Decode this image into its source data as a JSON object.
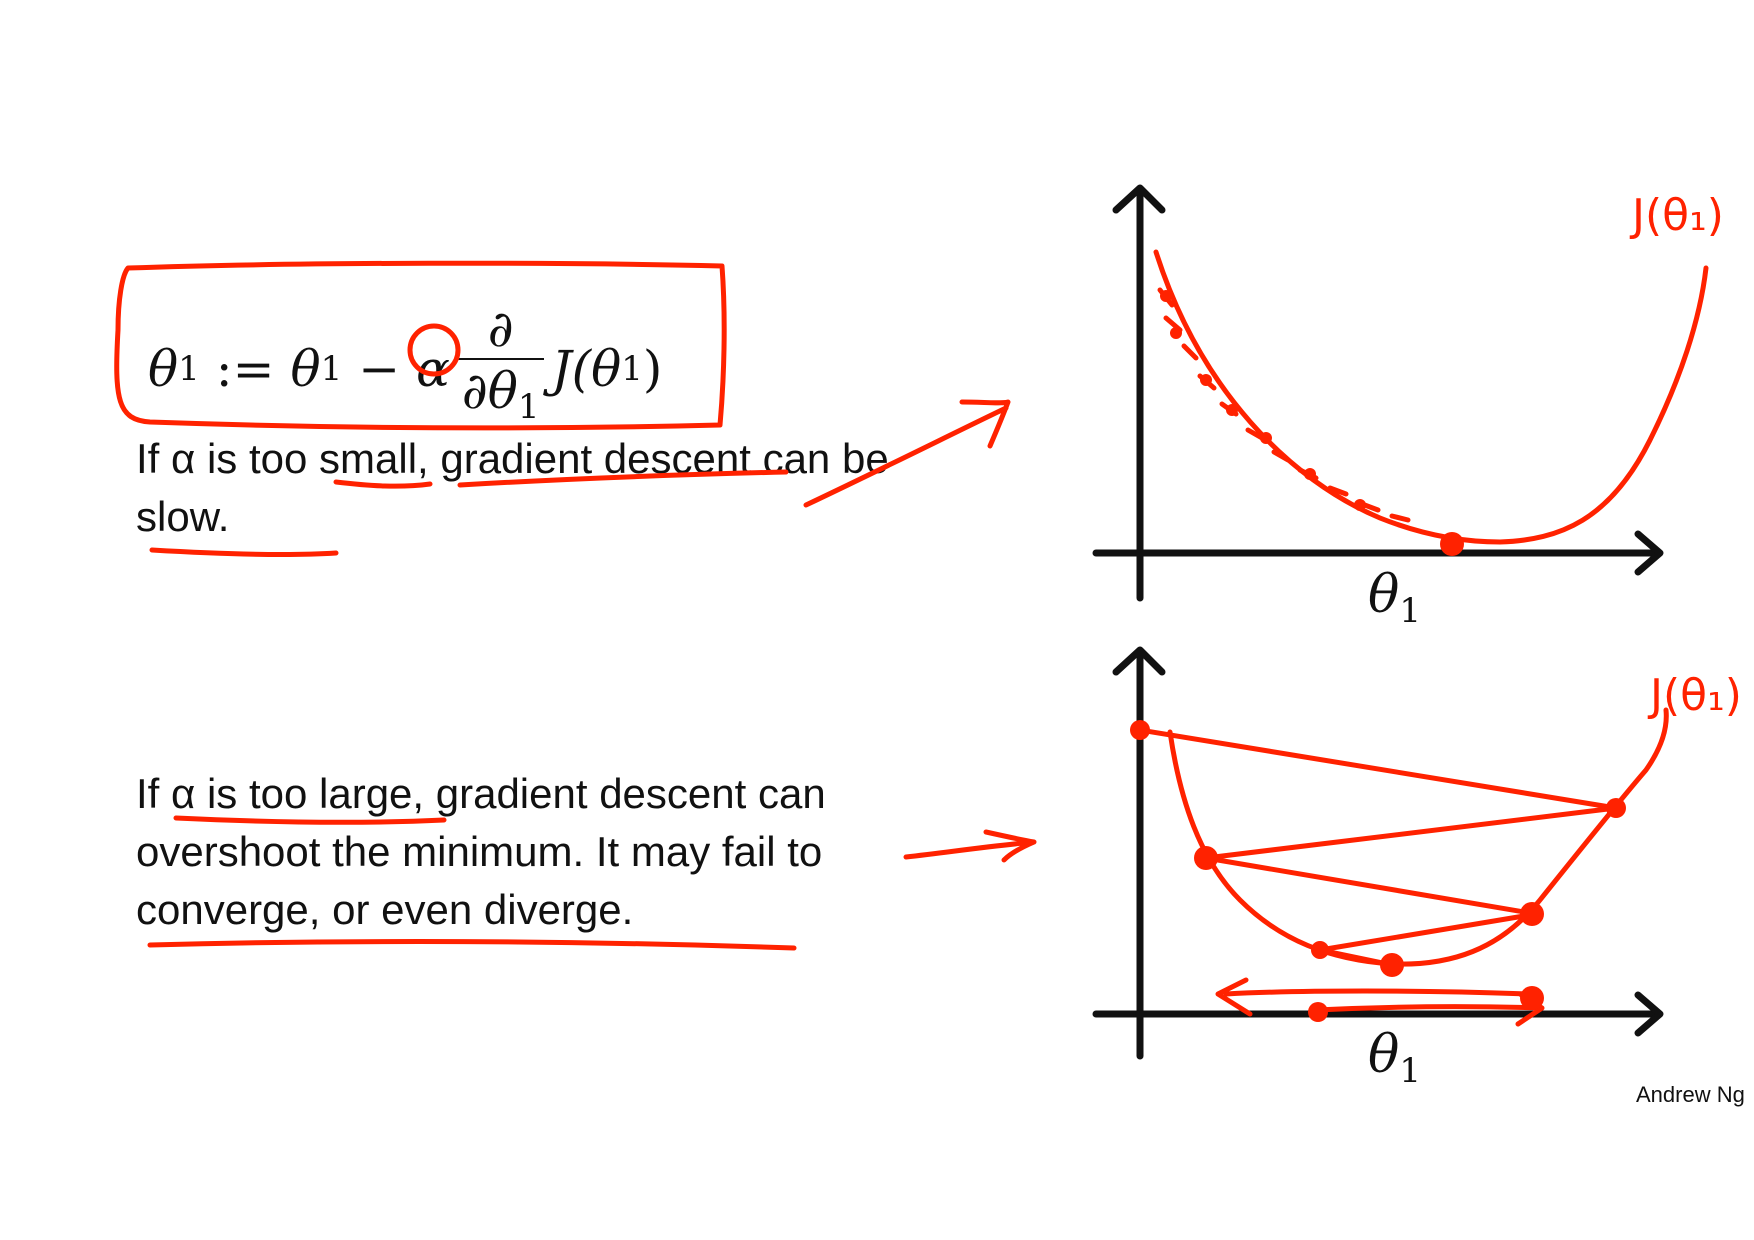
{
  "formula": {
    "lhs_var": "θ",
    "lhs_sub": "1",
    "assign": ":=",
    "rhs_var": "θ",
    "rhs_sub": "1",
    "minus": "−",
    "alpha": "α",
    "frac_num": "∂",
    "frac_den_var": "∂θ",
    "frac_den_sub": "1",
    "func": "J(θ",
    "func_sub": "1",
    "func_close": ")"
  },
  "paragraphs": {
    "small": "If α is too small, gradient descent can be slow.",
    "large": "If α is too large, gradient descent can overshoot the minimum. It may fail to converge, or even diverge."
  },
  "graphs": {
    "top": {
      "axis_label_var": "θ",
      "axis_label_sub": "1",
      "curve_label": "J(θ₁)"
    },
    "bottom": {
      "axis_label_var": "θ",
      "axis_label_sub": "1",
      "curve_label": "J(θ₁)"
    }
  },
  "credit": "Andrew Ng",
  "colors": {
    "annotation": "#ff2200",
    "ink": "#111111"
  }
}
